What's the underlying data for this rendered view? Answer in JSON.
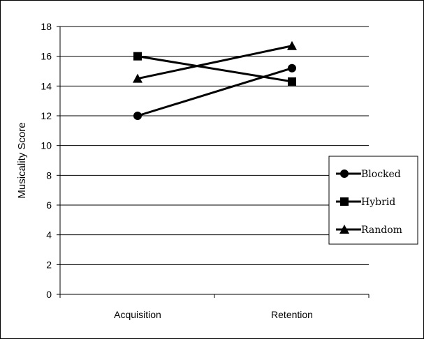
{
  "chart_data": {
    "type": "line",
    "title": "",
    "xlabel": "",
    "ylabel": "Musicality Score",
    "categories": [
      "Acquisition",
      "Retention"
    ],
    "ylim": [
      0,
      18
    ],
    "yticks": [
      0,
      2,
      4,
      6,
      8,
      10,
      12,
      14,
      16,
      18
    ],
    "grid": "horizontal",
    "legend_position": "right",
    "series": [
      {
        "name": "Blocked",
        "marker": "circle",
        "values": [
          12.0,
          15.2
        ]
      },
      {
        "name": "Hybrid",
        "marker": "square",
        "values": [
          16.0,
          14.3
        ]
      },
      {
        "name": "Random",
        "marker": "triangle",
        "values": [
          14.5,
          16.7
        ]
      }
    ],
    "colors": {
      "line": "#000000",
      "grid": "#000000"
    }
  }
}
